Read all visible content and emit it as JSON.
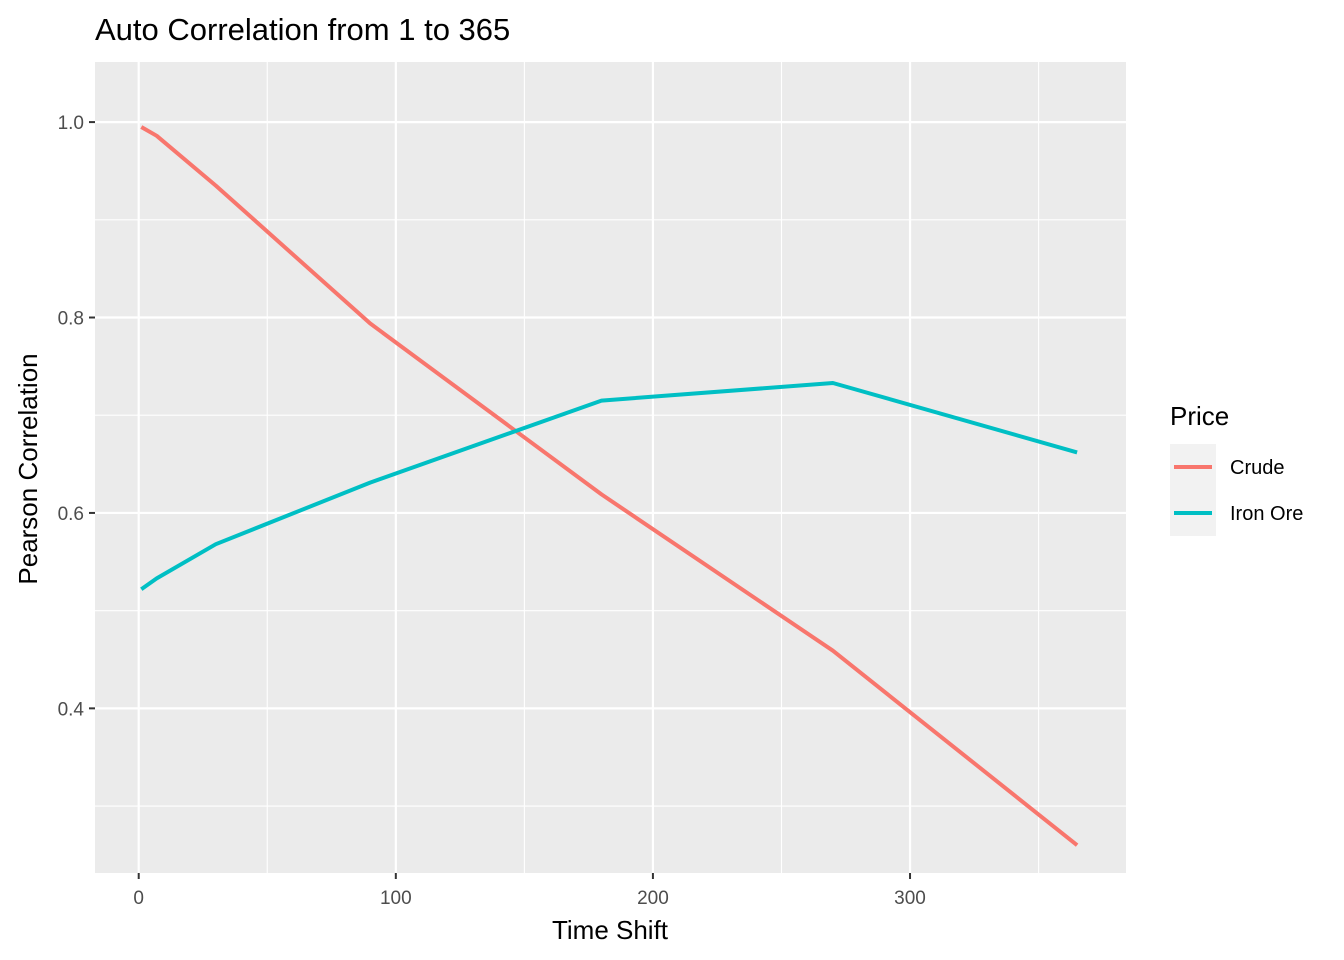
{
  "chart_data": {
    "type": "line",
    "title": "Auto Correlation from 1 to 365",
    "xlabel": "Time Shift",
    "ylabel": "Pearson Correlation",
    "xlim": [
      -17,
      384
    ],
    "ylim": [
      0.2315,
      1.0615
    ],
    "x_ticks": [
      0,
      100,
      200,
      300
    ],
    "x_tick_labels": [
      "0",
      "100",
      "200",
      "300"
    ],
    "y_ticks": [
      0.4,
      0.6,
      0.8,
      1.0
    ],
    "y_tick_labels": [
      "0.4",
      "0.6",
      "0.8",
      "1.0"
    ],
    "x_minor_ticks": [
      50,
      150,
      250,
      350
    ],
    "y_minor_ticks": [
      0.3,
      0.5,
      0.7,
      0.9
    ],
    "grid": true,
    "legend_title": "Price",
    "legend_position": "right",
    "series": [
      {
        "name": "Crude",
        "color": "#f8766d",
        "x": [
          1,
          7,
          30,
          90,
          180,
          270,
          365
        ],
        "y": [
          0.995,
          0.986,
          0.935,
          0.794,
          0.619,
          0.459,
          0.26
        ]
      },
      {
        "name": "Iron Ore",
        "color": "#00bfc4",
        "x": [
          1,
          7,
          30,
          90,
          180,
          270,
          365
        ],
        "y": [
          0.522,
          0.533,
          0.568,
          0.631,
          0.715,
          0.733,
          0.662
        ]
      }
    ]
  }
}
